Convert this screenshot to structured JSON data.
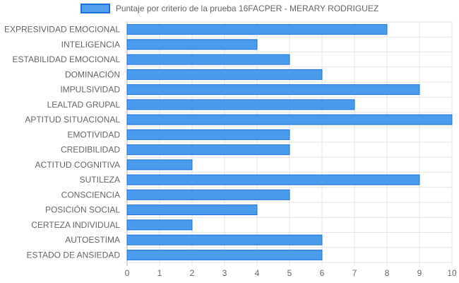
{
  "chart_data": {
    "type": "bar",
    "orientation": "horizontal",
    "categories": [
      "EXPRESIVIDAD EMOCIONAL",
      "INTELIGENCIA",
      "ESTABILIDAD EMOCIONAL",
      "DOMINACIÓN",
      "IMPULSIVIDAD",
      "LEALTAD GRUPAL",
      "APTITUD SITUACIONAL",
      "EMOTIVIDAD",
      "CREDIBILIDAD",
      "ACTITUD COGNITIVA",
      "SUTILEZA",
      "CONSCIENCIA",
      "POSICIÓN SOCIAL",
      "CERTEZA INDIVIDUAL",
      "AUTOESTIMA",
      "ESTADO DE ANSIEDAD"
    ],
    "series": [
      {
        "name": "Puntaje por criterio de la prueba 16FACPER - MERARY RODRIGUEZ",
        "values": [
          8,
          4,
          5,
          6,
          9,
          7,
          10,
          5,
          5,
          2,
          9,
          5,
          4,
          2,
          6,
          6
        ]
      }
    ],
    "xlim": [
      0,
      10
    ],
    "xticks": [
      "0",
      "1",
      "2",
      "3",
      "4",
      "5",
      "6",
      "7",
      "8",
      "9",
      "10"
    ],
    "grid": true,
    "legend_position": "top",
    "colors": {
      "bar_fill": "#4b9bed",
      "bar_border": "#1f70e0",
      "grid": "#e5e5e5",
      "text": "#666666"
    }
  }
}
